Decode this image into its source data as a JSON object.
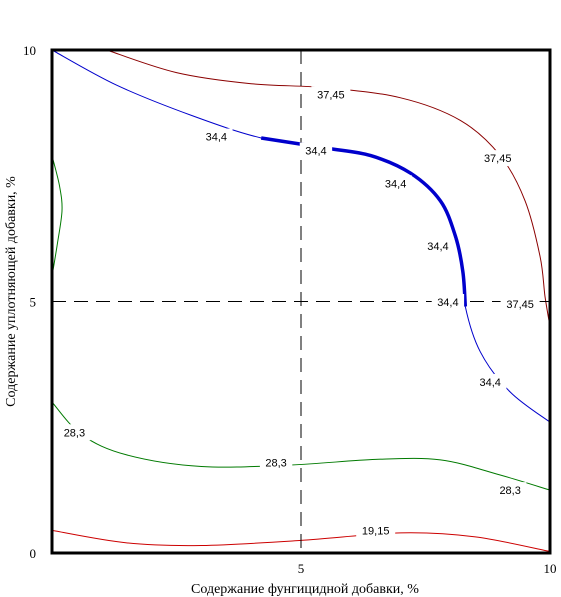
{
  "chart_data": {
    "type": "contour",
    "xlabel": "Содержание фунгицидной добавки, %",
    "ylabel": "Содержание уплотняющей добавки, %",
    "xlim": [
      0,
      10
    ],
    "ylim": [
      0,
      10
    ],
    "x_ticks": [
      "0",
      "5",
      "10"
    ],
    "y_ticks": [
      "0",
      "5",
      "10"
    ],
    "grid": "dashed crosshair at x=5 and y=5",
    "contours": [
      {
        "level": "37,45",
        "color": "#8b0000",
        "points": [
          [
            1.1,
            10
          ],
          [
            2.5,
            9.55
          ],
          [
            4,
            9.33
          ],
          [
            5.5,
            9.25
          ],
          [
            7,
            9.05
          ],
          [
            8.2,
            8.6
          ],
          [
            9,
            7.9
          ],
          [
            9.5,
            7
          ],
          [
            9.8,
            5.9
          ],
          [
            9.9,
            5.1
          ],
          [
            10,
            4.5
          ]
        ],
        "labels": [
          {
            "text": "37,45",
            "at": [
              5.6,
              9.12
            ]
          },
          {
            "text": "37,45",
            "at": [
              8.95,
              7.85
            ]
          },
          {
            "text": "37,45",
            "at": [
              9.4,
              4.95
            ]
          }
        ]
      },
      {
        "level": "34,4",
        "color": "#0000cc",
        "points": [
          [
            0,
            10
          ],
          [
            1.3,
            9.3
          ],
          [
            2.8,
            8.7
          ],
          [
            4.2,
            8.25
          ],
          [
            5.5,
            8.05
          ],
          [
            6.4,
            7.9
          ],
          [
            7.2,
            7.55
          ],
          [
            7.8,
            7
          ],
          [
            8.1,
            6.3
          ],
          [
            8.25,
            5.6
          ],
          [
            8.3,
            4.9
          ],
          [
            8.6,
            4
          ],
          [
            9.2,
            3.2
          ],
          [
            10,
            2.6
          ]
        ],
        "emphasis": [
          [
            3.8,
            8.3
          ],
          [
            8.4,
            4.6
          ]
        ],
        "labels": [
          {
            "text": "34,4",
            "at": [
              3.3,
              8.28
            ]
          },
          {
            "text": "34,4",
            "at": [
              5.3,
              8.0
            ]
          },
          {
            "text": "34,4",
            "at": [
              6.9,
              7.35
            ]
          },
          {
            "text": "34,4",
            "at": [
              7.75,
              6.1
            ]
          },
          {
            "text": "34,4",
            "at": [
              7.95,
              4.99
            ]
          },
          {
            "text": "34,4",
            "at": [
              8.8,
              3.4
            ]
          }
        ]
      },
      {
        "level": "28,3",
        "color": "#007a00",
        "points": [
          [
            0,
            3
          ],
          [
            0.6,
            2.35
          ],
          [
            1.5,
            1.95
          ],
          [
            3,
            1.72
          ],
          [
            4.8,
            1.75
          ],
          [
            6.5,
            1.86
          ],
          [
            7.8,
            1.85
          ],
          [
            9,
            1.55
          ],
          [
            10,
            1.25
          ]
        ],
        "labels": [
          {
            "text": "28,3",
            "at": [
              0.45,
              2.4
            ]
          },
          {
            "text": "28,3",
            "at": [
              4.5,
              1.8
            ]
          },
          {
            "text": "28,3",
            "at": [
              9.2,
              1.25
            ]
          }
        ]
      },
      {
        "level": "28,3 (left edge)",
        "color": "#007a00",
        "points": [
          [
            0,
            7.9
          ],
          [
            0.15,
            7.3
          ],
          [
            0.2,
            6.8
          ],
          [
            0.1,
            6.1
          ],
          [
            0,
            5.5
          ]
        ],
        "labels": []
      },
      {
        "level": "19,15",
        "color": "#cc0000",
        "points": [
          [
            0,
            0.45
          ],
          [
            1.5,
            0.2
          ],
          [
            3,
            0.15
          ],
          [
            5,
            0.25
          ],
          [
            7,
            0.4
          ],
          [
            8.5,
            0.32
          ],
          [
            10,
            0.03
          ]
        ],
        "labels": [
          {
            "text": "19,15",
            "at": [
              6.5,
              0.45
            ]
          }
        ]
      }
    ]
  }
}
